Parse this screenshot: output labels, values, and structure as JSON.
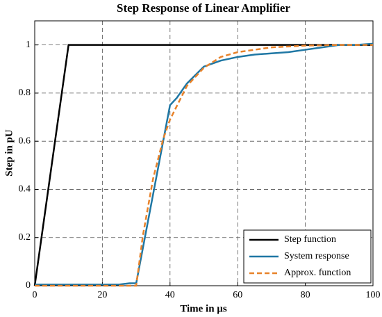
{
  "chart_data": {
    "type": "line",
    "title": "Step Response of Linear Amplifier",
    "x_label": "Time in µs",
    "y_label": "Step in pU",
    "xlim": [
      0,
      100
    ],
    "xticks": [
      0,
      20,
      40,
      60,
      80,
      100
    ],
    "ylim": [
      0,
      1.1
    ],
    "yticks": [
      0,
      0.2,
      0.4,
      0.6,
      0.8,
      1
    ],
    "grid": true,
    "legend": "lower right",
    "series": [
      {
        "name": "Step function",
        "color": "#000000",
        "dash": false,
        "x": [
          0,
          10,
          100
        ],
        "values": [
          0,
          1,
          1
        ]
      },
      {
        "name": "System response",
        "color": "#1f77a4",
        "dash": false,
        "x": [
          0,
          25,
          28,
          30,
          40,
          42,
          45,
          50,
          55,
          60,
          65,
          70,
          75,
          80,
          85,
          90,
          95,
          100
        ],
        "values": [
          0.005,
          0.005,
          0.01,
          0.01,
          0.75,
          0.78,
          0.84,
          0.91,
          0.935,
          0.95,
          0.96,
          0.965,
          0.97,
          0.98,
          0.99,
          1.0,
          1.0,
          1.005
        ]
      },
      {
        "name": "Approx. function",
        "color": "#e8822a",
        "dash": true,
        "x": [
          0,
          30,
          32,
          35,
          38,
          40,
          45,
          50,
          55,
          60,
          70,
          80,
          90,
          100
        ],
        "values": [
          0,
          0,
          0.21,
          0.445,
          0.61,
          0.69,
          0.83,
          0.905,
          0.95,
          0.97,
          0.99,
          0.997,
          1,
          1
        ]
      }
    ]
  }
}
